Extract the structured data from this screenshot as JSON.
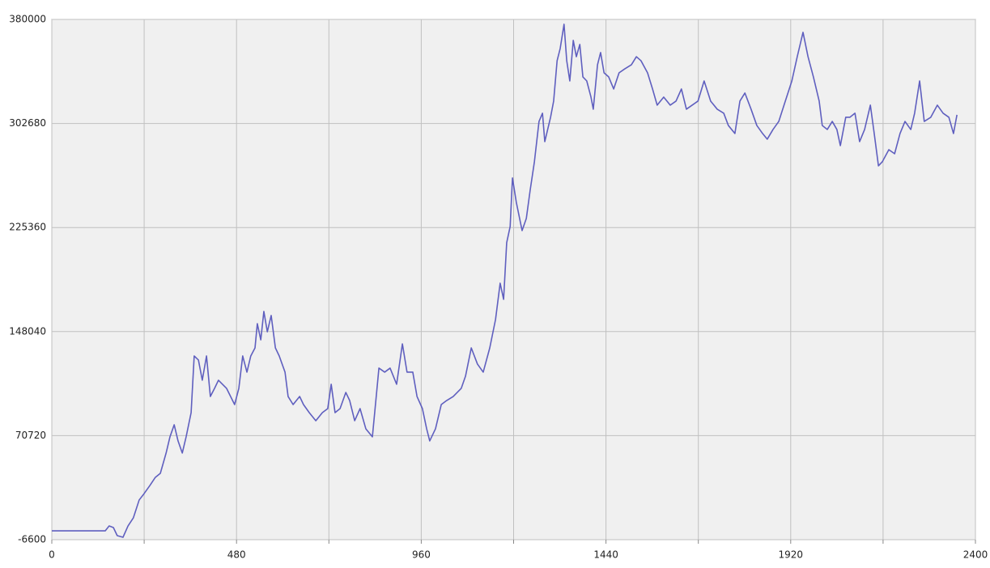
{
  "chart_data": {
    "type": "line",
    "xlim": [
      0,
      2400
    ],
    "xticks": [
      0,
      480,
      960,
      1440,
      1920,
      2400
    ],
    "xminorticks": [
      240,
      720,
      1200,
      1680,
      2160
    ],
    "ylim": [
      -6600,
      380000
    ],
    "yticks": [
      -6600,
      70720,
      148040,
      225360,
      302680,
      380000
    ],
    "grid": true,
    "x": [
      0,
      139,
      149,
      160,
      170,
      185,
      198,
      212,
      227,
      240,
      255,
      269,
      282,
      297,
      307,
      318,
      328,
      339,
      349,
      362,
      370,
      381,
      391,
      402,
      412,
      423,
      433,
      454,
      475,
      486,
      496,
      507,
      517,
      528,
      534,
      543,
      551,
      560,
      570,
      581,
      591,
      606,
      614,
      627,
      644,
      654,
      669,
      686,
      703,
      717,
      726,
      736,
      749,
      764,
      774,
      787,
      801,
      816,
      833,
      843,
      850,
      865,
      879,
      896,
      911,
      923,
      938,
      949,
      963,
      974,
      982,
      997,
      1012,
      1026,
      1043,
      1064,
      1075,
      1090,
      1106,
      1121,
      1138,
      1153,
      1165,
      1174,
      1182,
      1191,
      1197,
      1207,
      1222,
      1233,
      1243,
      1254,
      1266,
      1275,
      1281,
      1296,
      1304,
      1313,
      1321,
      1331,
      1338,
      1346,
      1355,
      1363,
      1372,
      1380,
      1390,
      1401,
      1407,
      1418,
      1426,
      1435,
      1447,
      1460,
      1474,
      1489,
      1506,
      1519,
      1531,
      1548,
      1561,
      1573,
      1590,
      1607,
      1622,
      1636,
      1649,
      1664,
      1679,
      1695,
      1712,
      1729,
      1746,
      1758,
      1775,
      1788,
      1801,
      1817,
      1832,
      1847,
      1859,
      1874,
      1889,
      1906,
      1923,
      1937,
      1952,
      1965,
      1979,
      1994,
      2002,
      2015,
      2028,
      2040,
      2049,
      2063,
      2074,
      2087,
      2099,
      2112,
      2127,
      2137,
      2148,
      2158,
      2175,
      2190,
      2204,
      2217,
      2232,
      2242,
      2255,
      2267,
      2284,
      2301,
      2316,
      2331,
      2343,
      2352
    ],
    "series": [
      {
        "color": "#5f5fbf",
        "values": [
          0,
          0,
          3600,
          2400,
          -3600,
          -4800,
          3600,
          9700,
          22900,
          27700,
          33700,
          39700,
          42700,
          57800,
          69800,
          78800,
          66800,
          57800,
          69800,
          87800,
          129900,
          126900,
          111900,
          129900,
          99800,
          105900,
          111900,
          105900,
          93800,
          105900,
          129900,
          117900,
          129900,
          135900,
          153900,
          141900,
          163000,
          147900,
          160000,
          135900,
          129900,
          117900,
          99800,
          93800,
          99800,
          93800,
          87800,
          81800,
          87800,
          90800,
          108900,
          87800,
          90800,
          102800,
          96800,
          81800,
          90800,
          75800,
          69800,
          99800,
          120900,
          117900,
          120900,
          108900,
          138900,
          117900,
          117900,
          99800,
          90800,
          75800,
          66800,
          75800,
          93800,
          96800,
          99800,
          105900,
          114900,
          135900,
          123900,
          117900,
          135900,
          157000,
          184000,
          172000,
          214100,
          226100,
          262200,
          244100,
          223100,
          232100,
          253100,
          274200,
          304200,
          310300,
          289200,
          307300,
          319300,
          349300,
          358400,
          376400,
          349300,
          334300,
          364400,
          352300,
          361400,
          337300,
          334300,
          322300,
          313300,
          346300,
          355400,
          340300,
          337300,
          328300,
          340300,
          343300,
          346300,
          352300,
          349300,
          340300,
          328300,
          316300,
          322300,
          316300,
          319300,
          328300,
          313300,
          316300,
          319300,
          334300,
          319300,
          313300,
          310300,
          301200,
          295200,
          319300,
          325300,
          313300,
          301200,
          295200,
          291000,
          298200,
          304200,
          319300,
          334300,
          352300,
          370400,
          352300,
          337300,
          319300,
          301200,
          298200,
          304200,
          298200,
          286200,
          307300,
          307300,
          310300,
          289200,
          298200,
          316300,
          295200,
          271200,
          274200,
          283200,
          280200,
          295200,
          304200,
          298200,
          310300,
          334300,
          304200,
          307300,
          316300,
          310300,
          307300,
          295200,
          309100
        ]
      }
    ]
  }
}
